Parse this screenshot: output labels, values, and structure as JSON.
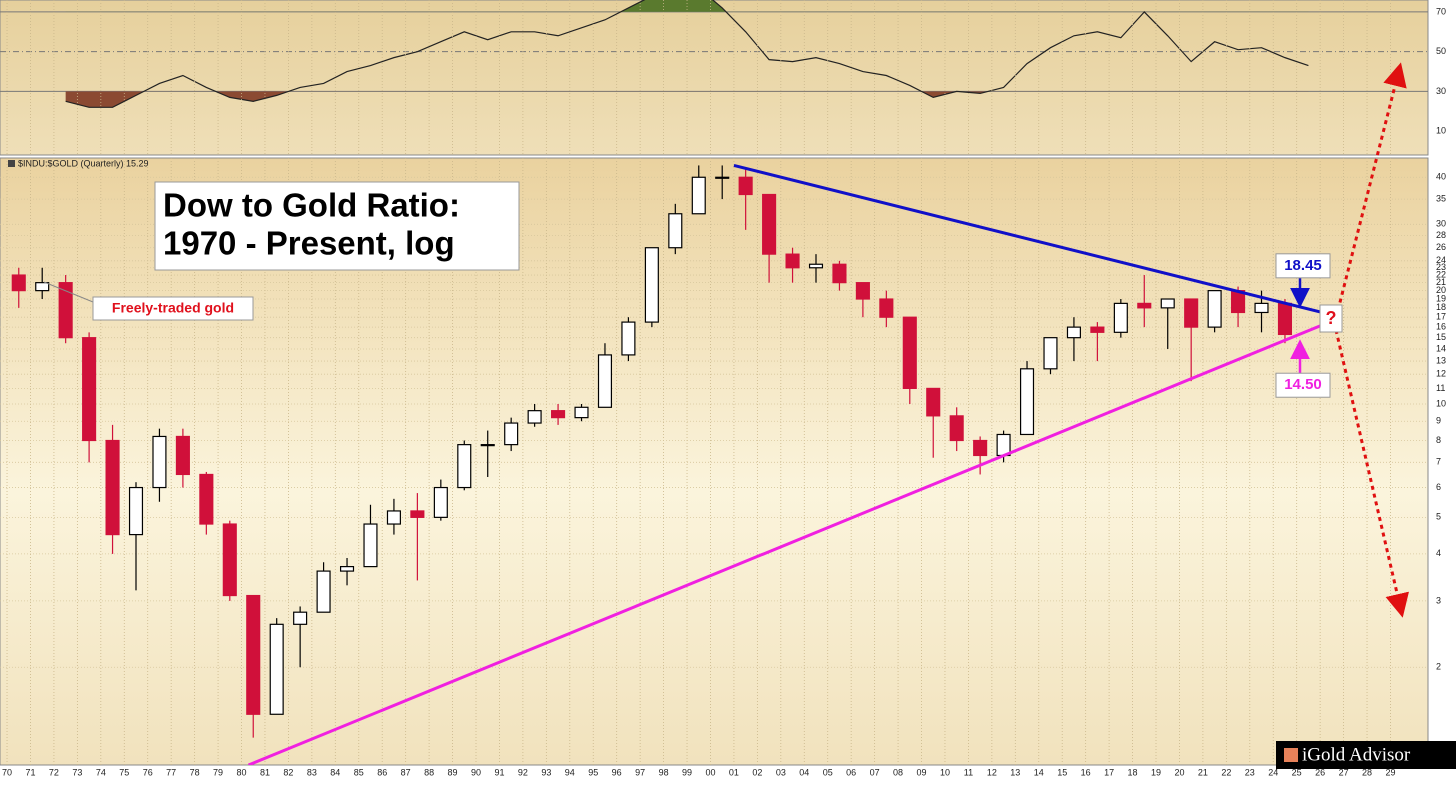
{
  "chart_data": [
    {
      "type": "candlestick",
      "header": "$INDU:$GOLD (Quarterly) 15.29",
      "title": "Dow to Gold Ratio:",
      "subtitle": "1970 - Present, log",
      "log_scale": true,
      "grid": true,
      "up_color": "#000000",
      "down_color": "#d0103a",
      "x": [
        1970,
        1971,
        1972,
        1973,
        1974,
        1975,
        1976,
        1977,
        1978,
        1979,
        1980,
        1981,
        1982,
        1983,
        1984,
        1985,
        1986,
        1987,
        1988,
        1989,
        1990,
        1991,
        1992,
        1993,
        1994,
        1995,
        1996,
        1997,
        1998,
        1999,
        2000,
        2001,
        2002,
        2003,
        2004,
        2005,
        2006,
        2007,
        2008,
        2009,
        2010,
        2011,
        2012,
        2013,
        2014,
        2015,
        2016,
        2017,
        2018,
        2019,
        2020,
        2021,
        2022,
        2023,
        2024
      ],
      "open": [
        22,
        20,
        21,
        15,
        8,
        4.5,
        6,
        8.2,
        6.5,
        4.8,
        3.1,
        1.5,
        2.6,
        2.8,
        3.6,
        3.7,
        4.8,
        5.2,
        5,
        6,
        7.8,
        7.8,
        8.9,
        9.6,
        9.2,
        9.8,
        13.5,
        16.5,
        26,
        32,
        40,
        40,
        36,
        25,
        23,
        23.5,
        21,
        19,
        17,
        11,
        9.3,
        8,
        7.3,
        8.3,
        12.4,
        15,
        16,
        15.5,
        18.5,
        18,
        19,
        16,
        20,
        17.5,
        18.5
      ],
      "high": [
        23,
        23,
        22,
        15.5,
        8.8,
        6.2,
        8.6,
        8.6,
        6.6,
        4.9,
        3.1,
        2.7,
        2.9,
        3.8,
        3.9,
        5.4,
        5.6,
        5.8,
        6.3,
        8,
        8.5,
        9.2,
        10,
        10,
        10,
        14.5,
        17,
        26,
        34,
        43,
        43,
        42,
        36,
        26,
        25,
        24,
        21,
        20,
        17,
        11,
        9.8,
        8.2,
        8.5,
        13,
        15,
        17,
        16.5,
        19,
        22,
        19,
        19,
        20,
        20.5,
        20,
        19
      ],
      "low": [
        18,
        19,
        14.5,
        7,
        4,
        3.2,
        5.5,
        6,
        4.5,
        3,
        1.3,
        1.5,
        2,
        2.8,
        3.3,
        3.7,
        4.5,
        3.4,
        4.9,
        5.9,
        6.4,
        7.5,
        8.7,
        8.8,
        9,
        9.8,
        13,
        16,
        25,
        32,
        35,
        29,
        21,
        21,
        21,
        20,
        17,
        16,
        10,
        7.2,
        7.5,
        6.5,
        7,
        8.3,
        12,
        13,
        13,
        15,
        16,
        14,
        11.5,
        15.5,
        16,
        15.5,
        14.5
      ],
      "close": [
        20,
        21,
        15,
        8,
        4.5,
        6,
        8.2,
        6.5,
        4.8,
        3.1,
        1.5,
        2.6,
        2.8,
        3.6,
        3.7,
        4.8,
        5.2,
        5,
        6,
        7.8,
        7.8,
        8.9,
        9.6,
        9.2,
        9.8,
        13.5,
        16.5,
        26,
        32,
        40,
        40,
        36,
        25,
        23,
        23.5,
        21,
        19,
        17,
        11,
        9.3,
        8,
        7.3,
        8.3,
        12.4,
        15,
        16,
        15.5,
        18.5,
        18,
        19,
        16,
        20,
        17.5,
        18.5,
        15.3
      ],
      "xlim": [
        1969.7,
        2030.6
      ],
      "ylim": [
        1.1,
        45
      ],
      "xticks": [
        {
          "value": 1970,
          "label": "70"
        },
        {
          "value": 1971,
          "label": "71"
        },
        {
          "value": 1972,
          "label": "72"
        },
        {
          "value": 1973,
          "label": "73"
        },
        {
          "value": 1974,
          "label": "74"
        },
        {
          "value": 1975,
          "label": "75"
        },
        {
          "value": 1976,
          "label": "76"
        },
        {
          "value": 1977,
          "label": "77"
        },
        {
          "value": 1978,
          "label": "78"
        },
        {
          "value": 1979,
          "label": "79"
        },
        {
          "value": 1980,
          "label": "80"
        },
        {
          "value": 1981,
          "label": "81"
        },
        {
          "value": 1982,
          "label": "82"
        },
        {
          "value": 1983,
          "label": "83"
        },
        {
          "value": 1984,
          "label": "84"
        },
        {
          "value": 1985,
          "label": "85"
        },
        {
          "value": 1986,
          "label": "86"
        },
        {
          "value": 1987,
          "label": "87"
        },
        {
          "value": 1988,
          "label": "88"
        },
        {
          "value": 1989,
          "label": "89"
        },
        {
          "value": 1990,
          "label": "90"
        },
        {
          "value": 1991,
          "label": "91"
        },
        {
          "value": 1992,
          "label": "92"
        },
        {
          "value": 1993,
          "label": "93"
        },
        {
          "value": 1994,
          "label": "94"
        },
        {
          "value": 1995,
          "label": "95"
        },
        {
          "value": 1996,
          "label": "96"
        },
        {
          "value": 1997,
          "label": "97"
        },
        {
          "value": 1998,
          "label": "98"
        },
        {
          "value": 1999,
          "label": "99"
        },
        {
          "value": 2000,
          "label": "00"
        },
        {
          "value": 2001,
          "label": "01"
        },
        {
          "value": 2002,
          "label": "02"
        },
        {
          "value": 2003,
          "label": "03"
        },
        {
          "value": 2004,
          "label": "04"
        },
        {
          "value": 2005,
          "label": "05"
        },
        {
          "value": 2006,
          "label": "06"
        },
        {
          "value": 2007,
          "label": "07"
        },
        {
          "value": 2008,
          "label": "08"
        },
        {
          "value": 2009,
          "label": "09"
        },
        {
          "value": 2010,
          "label": "10"
        },
        {
          "value": 2011,
          "label": "11"
        },
        {
          "value": 2012,
          "label": "12"
        },
        {
          "value": 2013,
          "label": "13"
        },
        {
          "value": 2014,
          "label": "14"
        },
        {
          "value": 2015,
          "label": "15"
        },
        {
          "value": 2016,
          "label": "16"
        },
        {
          "value": 2017,
          "label": "17"
        },
        {
          "value": 2018,
          "label": "18"
        },
        {
          "value": 2019,
          "label": "19"
        },
        {
          "value": 2020,
          "label": "20"
        },
        {
          "value": 2021,
          "label": "21"
        },
        {
          "value": 2022,
          "label": "22"
        },
        {
          "value": 2023,
          "label": "23"
        },
        {
          "value": 2024,
          "label": "24"
        },
        {
          "value": 2025,
          "label": "25"
        },
        {
          "value": 2026,
          "label": "26"
        },
        {
          "value": 2027,
          "label": "27"
        },
        {
          "value": 2028,
          "label": "28"
        },
        {
          "value": 2029,
          "label": "29"
        }
      ],
      "yticks": [
        2,
        3,
        4,
        5,
        6,
        7,
        8,
        9,
        10,
        11,
        12,
        13,
        14,
        15,
        16,
        17,
        18,
        19,
        20,
        21,
        22,
        23,
        24,
        26,
        28,
        30,
        35,
        40
      ],
      "trendlines": [
        {
          "color": "#1010c8",
          "x": [
            2001.0,
            2026.9
          ],
          "values": [
            43,
            17
          ]
        },
        {
          "color": "#f020e0",
          "x": [
            1980.3,
            2026.9
          ],
          "values": [
            1.1,
            17
          ]
        }
      ],
      "callouts": [
        {
          "label": "18.45",
          "value": 18.45,
          "color": "#1010c8"
        },
        {
          "label": "14.50",
          "value": 14.5,
          "color": "#f020e0"
        }
      ],
      "annotations": [
        "Freely-traded gold",
        "?"
      ],
      "watermark": "iGold Advisor"
    },
    {
      "type": "line",
      "color": "#222222",
      "overbought_color": "#5a7a2e",
      "oversold_color": "#8b4a32",
      "x": [
        1972,
        1973,
        1974,
        1975,
        1976,
        1977,
        1978,
        1979,
        1980,
        1981,
        1982,
        1983,
        1984,
        1985,
        1986,
        1987,
        1988,
        1989,
        1990,
        1991,
        1992,
        1993,
        1994,
        1995,
        1996,
        1997,
        1998,
        1999,
        2000,
        2001,
        2002,
        2003,
        2004,
        2005,
        2006,
        2007,
        2008,
        2009,
        2010,
        2011,
        2012,
        2013,
        2014,
        2015,
        2016,
        2017,
        2018,
        2019,
        2020,
        2021,
        2022,
        2023,
        2024,
        2025
      ],
      "values": [
        25,
        22,
        22,
        28,
        34,
        38,
        32,
        27,
        25,
        28,
        32,
        34,
        40,
        43,
        47,
        50,
        55,
        60,
        56,
        60,
        60,
        58,
        62,
        66,
        72,
        78,
        85,
        82,
        72,
        60,
        46,
        45,
        47,
        44,
        40,
        38,
        33,
        27,
        30,
        29,
        32,
        44,
        52,
        58,
        60,
        57,
        70,
        58,
        45,
        55,
        51,
        52,
        47,
        43
      ],
      "ylim": [
        -2,
        76
      ],
      "yticks": [
        10,
        30,
        50,
        70
      ],
      "levels": [
        30,
        50,
        70
      ]
    }
  ]
}
